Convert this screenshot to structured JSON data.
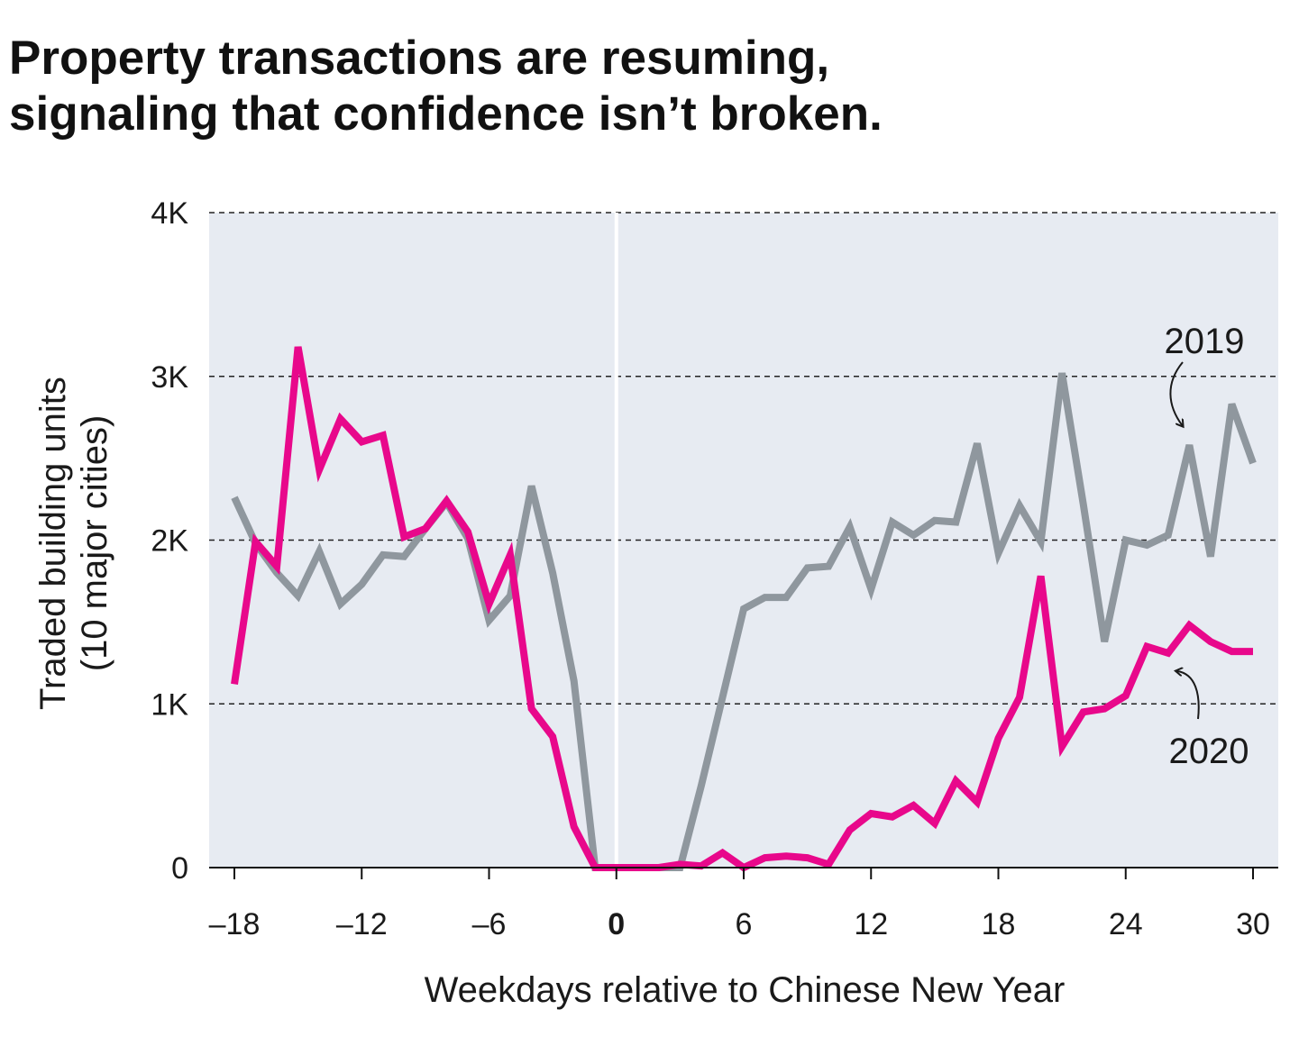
{
  "title_lines": [
    "Property transactions are resuming,",
    "signaling that confidence isn’t broken."
  ],
  "chart_data": {
    "type": "line",
    "title": "Property transactions are resuming, signaling that confidence isn’t broken.",
    "xlabel": "Weekdays relative to Chinese New Year",
    "ylabel_lines": [
      "Traded building units",
      "(10 major cities)"
    ],
    "xlim": [
      -18,
      30
    ],
    "ylim": [
      0,
      4000
    ],
    "x_ticks": [
      -18,
      -12,
      -6,
      0,
      6,
      12,
      18,
      24,
      30
    ],
    "x_tick_labels": [
      "–18",
      "–12",
      "–6",
      "0",
      "6",
      "12",
      "18",
      "24",
      "30"
    ],
    "y_ticks": [
      0,
      1000,
      2000,
      3000,
      4000
    ],
    "y_tick_labels": [
      "0",
      "1K",
      "2K",
      "3K",
      "4K"
    ],
    "grid": "horizontal dashed",
    "reference_line_x": 0,
    "colors": {
      "plot_bg": "#e7ebf2",
      "series_2019": "#8f979e",
      "series_2020": "#e8088b"
    },
    "series": [
      {
        "name": "2019",
        "x": [
          -18,
          -17,
          -16,
          -15,
          -14,
          -13,
          -12,
          -11,
          -10,
          -9,
          -8,
          -7,
          -6,
          -5,
          -4,
          -3,
          -2,
          -1,
          0,
          1,
          2,
          3,
          4,
          5,
          6,
          7,
          8,
          9,
          10,
          11,
          12,
          13,
          14,
          15,
          16,
          17,
          18,
          19,
          20,
          21,
          22,
          23,
          24,
          25,
          26,
          27,
          28,
          29,
          30
        ],
        "values": [
          2260,
          1980,
          1800,
          1660,
          1930,
          1610,
          1730,
          1910,
          1900,
          2070,
          2230,
          2010,
          1510,
          1660,
          2330,
          1800,
          1140,
          0,
          0,
          0,
          0,
          0,
          500,
          1040,
          1580,
          1650,
          1650,
          1830,
          1840,
          2080,
          1700,
          2110,
          2030,
          2120,
          2110,
          2590,
          1920,
          2210,
          1990,
          3020,
          2220,
          1380,
          2000,
          1970,
          2030,
          2580,
          1900,
          2830,
          2470
        ]
      },
      {
        "name": "2020",
        "x": [
          -18,
          -17,
          -16,
          -15,
          -14,
          -13,
          -12,
          -11,
          -10,
          -9,
          -8,
          -7,
          -6,
          -5,
          -4,
          -3,
          -2,
          -1,
          0,
          1,
          2,
          3,
          4,
          5,
          6,
          7,
          8,
          9,
          10,
          11,
          12,
          13,
          14,
          15,
          16,
          17,
          18,
          19,
          20,
          21,
          22,
          23,
          24,
          25,
          26,
          27,
          28,
          29,
          30
        ],
        "values": [
          1120,
          1990,
          1840,
          3180,
          2430,
          2740,
          2600,
          2640,
          2020,
          2070,
          2240,
          2050,
          1610,
          1910,
          970,
          800,
          250,
          0,
          0,
          0,
          0,
          20,
          10,
          90,
          0,
          60,
          70,
          60,
          20,
          230,
          330,
          310,
          380,
          270,
          530,
          400,
          790,
          1040,
          1780,
          740,
          950,
          970,
          1050,
          1350,
          1310,
          1480,
          1380,
          1320,
          1320
        ]
      }
    ],
    "annotations": [
      {
        "text": "2019",
        "series": "2019",
        "x": 27
      },
      {
        "text": "2020",
        "series": "2020",
        "x": 26
      }
    ]
  }
}
